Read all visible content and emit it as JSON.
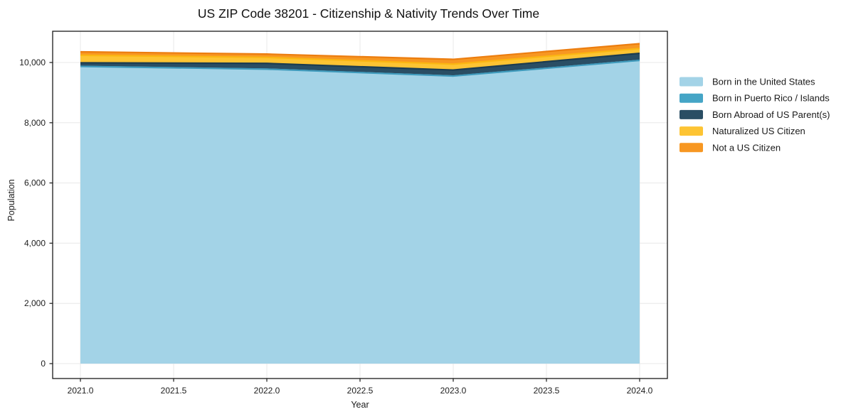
{
  "chart_data": {
    "type": "area",
    "stacked": true,
    "title": "US ZIP Code 38201 - Citizenship & Nativity Trends Over Time",
    "xlabel": "Year",
    "ylabel": "Population",
    "x": [
      2021,
      2022,
      2023,
      2024
    ],
    "x_ticks": [
      2021.0,
      2021.5,
      2022.0,
      2022.5,
      2023.0,
      2023.5,
      2024.0
    ],
    "x_tick_labels": [
      "2021.0",
      "2021.5",
      "2022.0",
      "2022.5",
      "2023.0",
      "2023.5",
      "2024.0"
    ],
    "y_ticks": [
      0,
      2000,
      4000,
      6000,
      8000,
      10000
    ],
    "y_tick_labels": [
      "0",
      "2,000",
      "4,000",
      "6,000",
      "8,000",
      "10,000"
    ],
    "xlim": [
      2020.851,
      2024.149
    ],
    "ylim": [
      -495,
      11038
    ],
    "grid": true,
    "grid_color": "#e8e8e8",
    "frame_color": "#1a1a1a",
    "legend_position": "right-outside",
    "series": [
      {
        "name": "Born in the United States",
        "fill": "#a3d3e7",
        "line": "#8fc8de",
        "values": [
          9870,
          9780,
          9550,
          10070
        ]
      },
      {
        "name": "Born in Puerto Rico / Islands",
        "fill": "#45a5c6",
        "line": "#3e9abc",
        "values": [
          0,
          0,
          0,
          0
        ]
      },
      {
        "name": "Born Abroad of US Parent(s)",
        "fill": "#2a4e64",
        "line": "#1c3c50",
        "values": [
          120,
          190,
          200,
          235
        ]
      },
      {
        "name": "Naturalized US Citizen",
        "fill": "#fdc433",
        "line": "#fbb612",
        "values": [
          250,
          200,
          195,
          160
        ]
      },
      {
        "name": "Not a US Citizen",
        "fill": "#f79722",
        "line": "#ec7d0f",
        "values": [
          115,
          110,
          160,
          160
        ]
      }
    ]
  }
}
